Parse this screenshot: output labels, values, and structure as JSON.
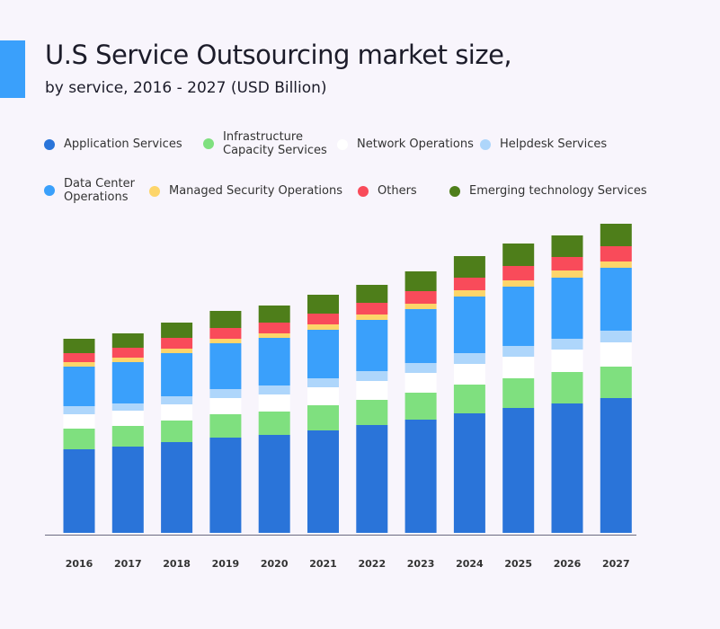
{
  "chart_data": {
    "type": "bar",
    "stacked": true,
    "title": "U.S Service Outsourcing market size,",
    "subtitle": "by service, 2016 - 2027 (USD Billion)",
    "categories": [
      "2016",
      "2017",
      "2018",
      "2019",
      "2020",
      "2021",
      "2022",
      "2023",
      "2024",
      "2025",
      "2026",
      "2027"
    ],
    "y_axis_shown": false,
    "grid": false,
    "legend_position": "top",
    "series": [
      {
        "name": "Application Services",
        "color": "#2a74d9",
        "values": [
          93,
          96,
          101,
          106,
          109,
          114,
          120,
          126,
          133,
          139,
          144,
          150
        ]
      },
      {
        "name": "Infrastructure Capacity Services",
        "color": "#7fe07f",
        "values": [
          23,
          23,
          24,
          26,
          26,
          28,
          28,
          30,
          32,
          33,
          35,
          35
        ]
      },
      {
        "name": "Network Operations",
        "color": "#ffffff",
        "values": [
          16,
          17,
          18,
          18,
          19,
          20,
          21,
          22,
          23,
          24,
          25,
          27
        ]
      },
      {
        "name": "Helpdesk Services",
        "color": "#aed6fb",
        "values": [
          9,
          8,
          9,
          10,
          10,
          10,
          11,
          11,
          12,
          12,
          12,
          13
        ]
      },
      {
        "name": "Data Center Operations",
        "color": "#3aa0fb",
        "values": [
          44,
          46,
          48,
          51,
          53,
          54,
          57,
          60,
          63,
          66,
          68,
          70
        ]
      },
      {
        "name": "Managed Security Operations",
        "color": "#fdd56a",
        "values": [
          5,
          5,
          5,
          5,
          5,
          6,
          6,
          6,
          7,
          7,
          8,
          7
        ]
      },
      {
        "name": "Others",
        "color": "#f94b5a",
        "values": [
          10,
          11,
          12,
          12,
          12,
          12,
          13,
          14,
          14,
          16,
          15,
          17
        ]
      },
      {
        "name": "Emerging technology Services",
        "color": "#4e7e1a",
        "values": [
          16,
          16,
          17,
          19,
          19,
          21,
          20,
          22,
          24,
          25,
          24,
          25
        ]
      }
    ],
    "note_values": "relative estimates; no value axis printed"
  },
  "legend": [
    {
      "line1": "Application Services"
    },
    {
      "line1": "Infrastructure",
      "line2": "Capacity Services"
    },
    {
      "line1": "Network Operations"
    },
    {
      "line1": "Helpdesk Services"
    },
    {
      "line1": "Data Center",
      "line2": "Operations"
    },
    {
      "line1": "Managed Security Operations"
    },
    {
      "line1": "Others"
    },
    {
      "line1": "Emerging technology Services"
    }
  ]
}
